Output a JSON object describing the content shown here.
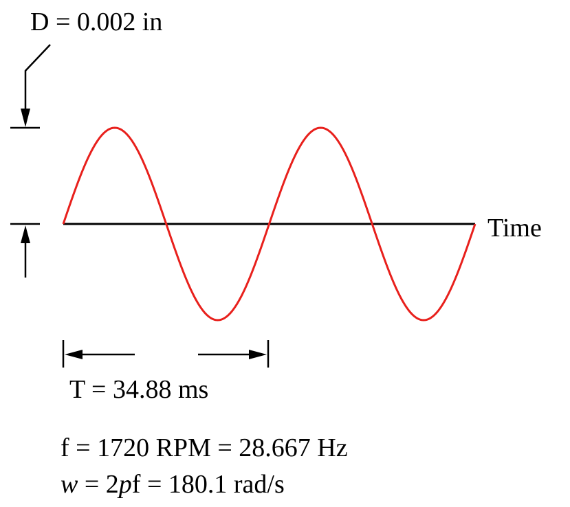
{
  "displacement_label": "D = 0.002 in",
  "time_axis_label": "Time",
  "period_label": "T = 34.88 ms",
  "frequency_line": "f = 1720 RPM = 28.667 Hz",
  "omega_line": {
    "w": "w",
    "eq1": " = 2",
    "p": "p",
    "rest": "f = 180.1 rad/s"
  },
  "colors": {
    "wave": "#e8201c",
    "lines": "#000000"
  },
  "wave": {
    "cycles": 2
  }
}
